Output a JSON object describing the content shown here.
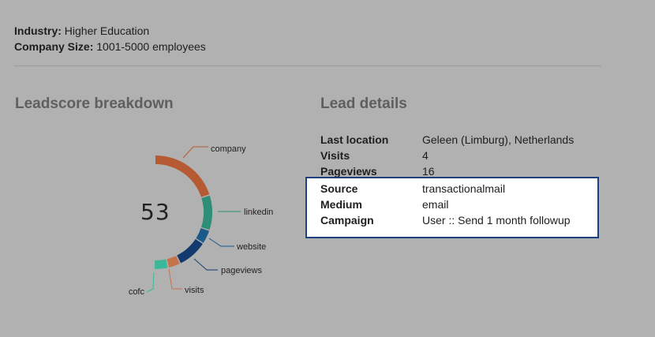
{
  "company": {
    "industry_label": "Industry:",
    "industry_value": "Higher Education",
    "size_label": "Company Size:",
    "size_value": "1001-5000 employees"
  },
  "leadscore": {
    "title": "Leadscore breakdown",
    "score": "53"
  },
  "chart_data": {
    "type": "pie",
    "total": 53,
    "segments": [
      {
        "name": "company",
        "share": 0.4,
        "color": "#b55a33"
      },
      {
        "name": "linkedin",
        "share": 0.2,
        "color": "#2f8f76"
      },
      {
        "name": "website",
        "share": 0.08,
        "color": "#1c5a8a"
      },
      {
        "name": "pageviews",
        "share": 0.17,
        "color": "#123a6e"
      },
      {
        "name": "visits",
        "share": 0.07,
        "color": "#c4734a"
      },
      {
        "name": "cofc",
        "share": 0.08,
        "color": "#3bb89a"
      }
    ]
  },
  "lead_details": {
    "title": "Lead details",
    "rows": [
      {
        "label": "Last location",
        "value": "Geleen (Limburg), Netherlands"
      },
      {
        "label": "Visits",
        "value": "4"
      },
      {
        "label": "Pageviews",
        "value": "16"
      }
    ],
    "highlighted_rows": [
      {
        "label": "Source",
        "value": "transactionalmail"
      },
      {
        "label": "Medium",
        "value": "email"
      },
      {
        "label": "Campaign",
        "value": "User :: Send 1 month followup"
      }
    ]
  }
}
